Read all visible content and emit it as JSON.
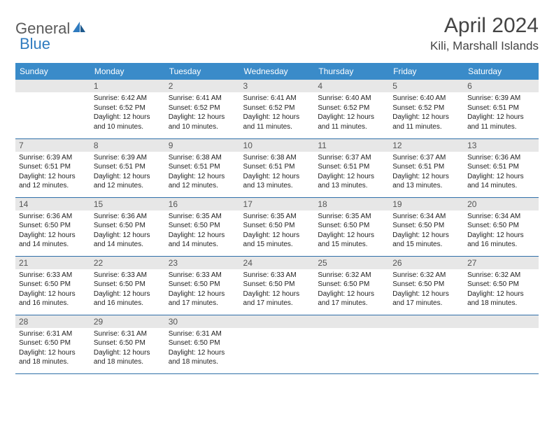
{
  "logo": {
    "part1": "General",
    "part2": "Blue"
  },
  "title": "April 2024",
  "location": "Kili, Marshall Islands",
  "colors": {
    "header_bg": "#3a8bc9",
    "header_text": "#ffffff",
    "daynum_bg": "#e7e7e7",
    "border": "#2f6fa8",
    "logo_gray": "#5a5a5a",
    "logo_blue": "#2f7bbf"
  },
  "day_labels": [
    "Sunday",
    "Monday",
    "Tuesday",
    "Wednesday",
    "Thursday",
    "Friday",
    "Saturday"
  ],
  "weeks": [
    [
      {
        "num": "",
        "sunrise": "",
        "sunset": "",
        "daylight": ""
      },
      {
        "num": "1",
        "sunrise": "Sunrise: 6:42 AM",
        "sunset": "Sunset: 6:52 PM",
        "daylight": "Daylight: 12 hours and 10 minutes."
      },
      {
        "num": "2",
        "sunrise": "Sunrise: 6:41 AM",
        "sunset": "Sunset: 6:52 PM",
        "daylight": "Daylight: 12 hours and 10 minutes."
      },
      {
        "num": "3",
        "sunrise": "Sunrise: 6:41 AM",
        "sunset": "Sunset: 6:52 PM",
        "daylight": "Daylight: 12 hours and 11 minutes."
      },
      {
        "num": "4",
        "sunrise": "Sunrise: 6:40 AM",
        "sunset": "Sunset: 6:52 PM",
        "daylight": "Daylight: 12 hours and 11 minutes."
      },
      {
        "num": "5",
        "sunrise": "Sunrise: 6:40 AM",
        "sunset": "Sunset: 6:52 PM",
        "daylight": "Daylight: 12 hours and 11 minutes."
      },
      {
        "num": "6",
        "sunrise": "Sunrise: 6:39 AM",
        "sunset": "Sunset: 6:51 PM",
        "daylight": "Daylight: 12 hours and 11 minutes."
      }
    ],
    [
      {
        "num": "7",
        "sunrise": "Sunrise: 6:39 AM",
        "sunset": "Sunset: 6:51 PM",
        "daylight": "Daylight: 12 hours and 12 minutes."
      },
      {
        "num": "8",
        "sunrise": "Sunrise: 6:39 AM",
        "sunset": "Sunset: 6:51 PM",
        "daylight": "Daylight: 12 hours and 12 minutes."
      },
      {
        "num": "9",
        "sunrise": "Sunrise: 6:38 AM",
        "sunset": "Sunset: 6:51 PM",
        "daylight": "Daylight: 12 hours and 12 minutes."
      },
      {
        "num": "10",
        "sunrise": "Sunrise: 6:38 AM",
        "sunset": "Sunset: 6:51 PM",
        "daylight": "Daylight: 12 hours and 13 minutes."
      },
      {
        "num": "11",
        "sunrise": "Sunrise: 6:37 AM",
        "sunset": "Sunset: 6:51 PM",
        "daylight": "Daylight: 12 hours and 13 minutes."
      },
      {
        "num": "12",
        "sunrise": "Sunrise: 6:37 AM",
        "sunset": "Sunset: 6:51 PM",
        "daylight": "Daylight: 12 hours and 13 minutes."
      },
      {
        "num": "13",
        "sunrise": "Sunrise: 6:36 AM",
        "sunset": "Sunset: 6:51 PM",
        "daylight": "Daylight: 12 hours and 14 minutes."
      }
    ],
    [
      {
        "num": "14",
        "sunrise": "Sunrise: 6:36 AM",
        "sunset": "Sunset: 6:50 PM",
        "daylight": "Daylight: 12 hours and 14 minutes."
      },
      {
        "num": "15",
        "sunrise": "Sunrise: 6:36 AM",
        "sunset": "Sunset: 6:50 PM",
        "daylight": "Daylight: 12 hours and 14 minutes."
      },
      {
        "num": "16",
        "sunrise": "Sunrise: 6:35 AM",
        "sunset": "Sunset: 6:50 PM",
        "daylight": "Daylight: 12 hours and 14 minutes."
      },
      {
        "num": "17",
        "sunrise": "Sunrise: 6:35 AM",
        "sunset": "Sunset: 6:50 PM",
        "daylight": "Daylight: 12 hours and 15 minutes."
      },
      {
        "num": "18",
        "sunrise": "Sunrise: 6:35 AM",
        "sunset": "Sunset: 6:50 PM",
        "daylight": "Daylight: 12 hours and 15 minutes."
      },
      {
        "num": "19",
        "sunrise": "Sunrise: 6:34 AM",
        "sunset": "Sunset: 6:50 PM",
        "daylight": "Daylight: 12 hours and 15 minutes."
      },
      {
        "num": "20",
        "sunrise": "Sunrise: 6:34 AM",
        "sunset": "Sunset: 6:50 PM",
        "daylight": "Daylight: 12 hours and 16 minutes."
      }
    ],
    [
      {
        "num": "21",
        "sunrise": "Sunrise: 6:33 AM",
        "sunset": "Sunset: 6:50 PM",
        "daylight": "Daylight: 12 hours and 16 minutes."
      },
      {
        "num": "22",
        "sunrise": "Sunrise: 6:33 AM",
        "sunset": "Sunset: 6:50 PM",
        "daylight": "Daylight: 12 hours and 16 minutes."
      },
      {
        "num": "23",
        "sunrise": "Sunrise: 6:33 AM",
        "sunset": "Sunset: 6:50 PM",
        "daylight": "Daylight: 12 hours and 17 minutes."
      },
      {
        "num": "24",
        "sunrise": "Sunrise: 6:33 AM",
        "sunset": "Sunset: 6:50 PM",
        "daylight": "Daylight: 12 hours and 17 minutes."
      },
      {
        "num": "25",
        "sunrise": "Sunrise: 6:32 AM",
        "sunset": "Sunset: 6:50 PM",
        "daylight": "Daylight: 12 hours and 17 minutes."
      },
      {
        "num": "26",
        "sunrise": "Sunrise: 6:32 AM",
        "sunset": "Sunset: 6:50 PM",
        "daylight": "Daylight: 12 hours and 17 minutes."
      },
      {
        "num": "27",
        "sunrise": "Sunrise: 6:32 AM",
        "sunset": "Sunset: 6:50 PM",
        "daylight": "Daylight: 12 hours and 18 minutes."
      }
    ],
    [
      {
        "num": "28",
        "sunrise": "Sunrise: 6:31 AM",
        "sunset": "Sunset: 6:50 PM",
        "daylight": "Daylight: 12 hours and 18 minutes."
      },
      {
        "num": "29",
        "sunrise": "Sunrise: 6:31 AM",
        "sunset": "Sunset: 6:50 PM",
        "daylight": "Daylight: 12 hours and 18 minutes."
      },
      {
        "num": "30",
        "sunrise": "Sunrise: 6:31 AM",
        "sunset": "Sunset: 6:50 PM",
        "daylight": "Daylight: 12 hours and 18 minutes."
      },
      {
        "num": "",
        "sunrise": "",
        "sunset": "",
        "daylight": ""
      },
      {
        "num": "",
        "sunrise": "",
        "sunset": "",
        "daylight": ""
      },
      {
        "num": "",
        "sunrise": "",
        "sunset": "",
        "daylight": ""
      },
      {
        "num": "",
        "sunrise": "",
        "sunset": "",
        "daylight": ""
      }
    ]
  ]
}
